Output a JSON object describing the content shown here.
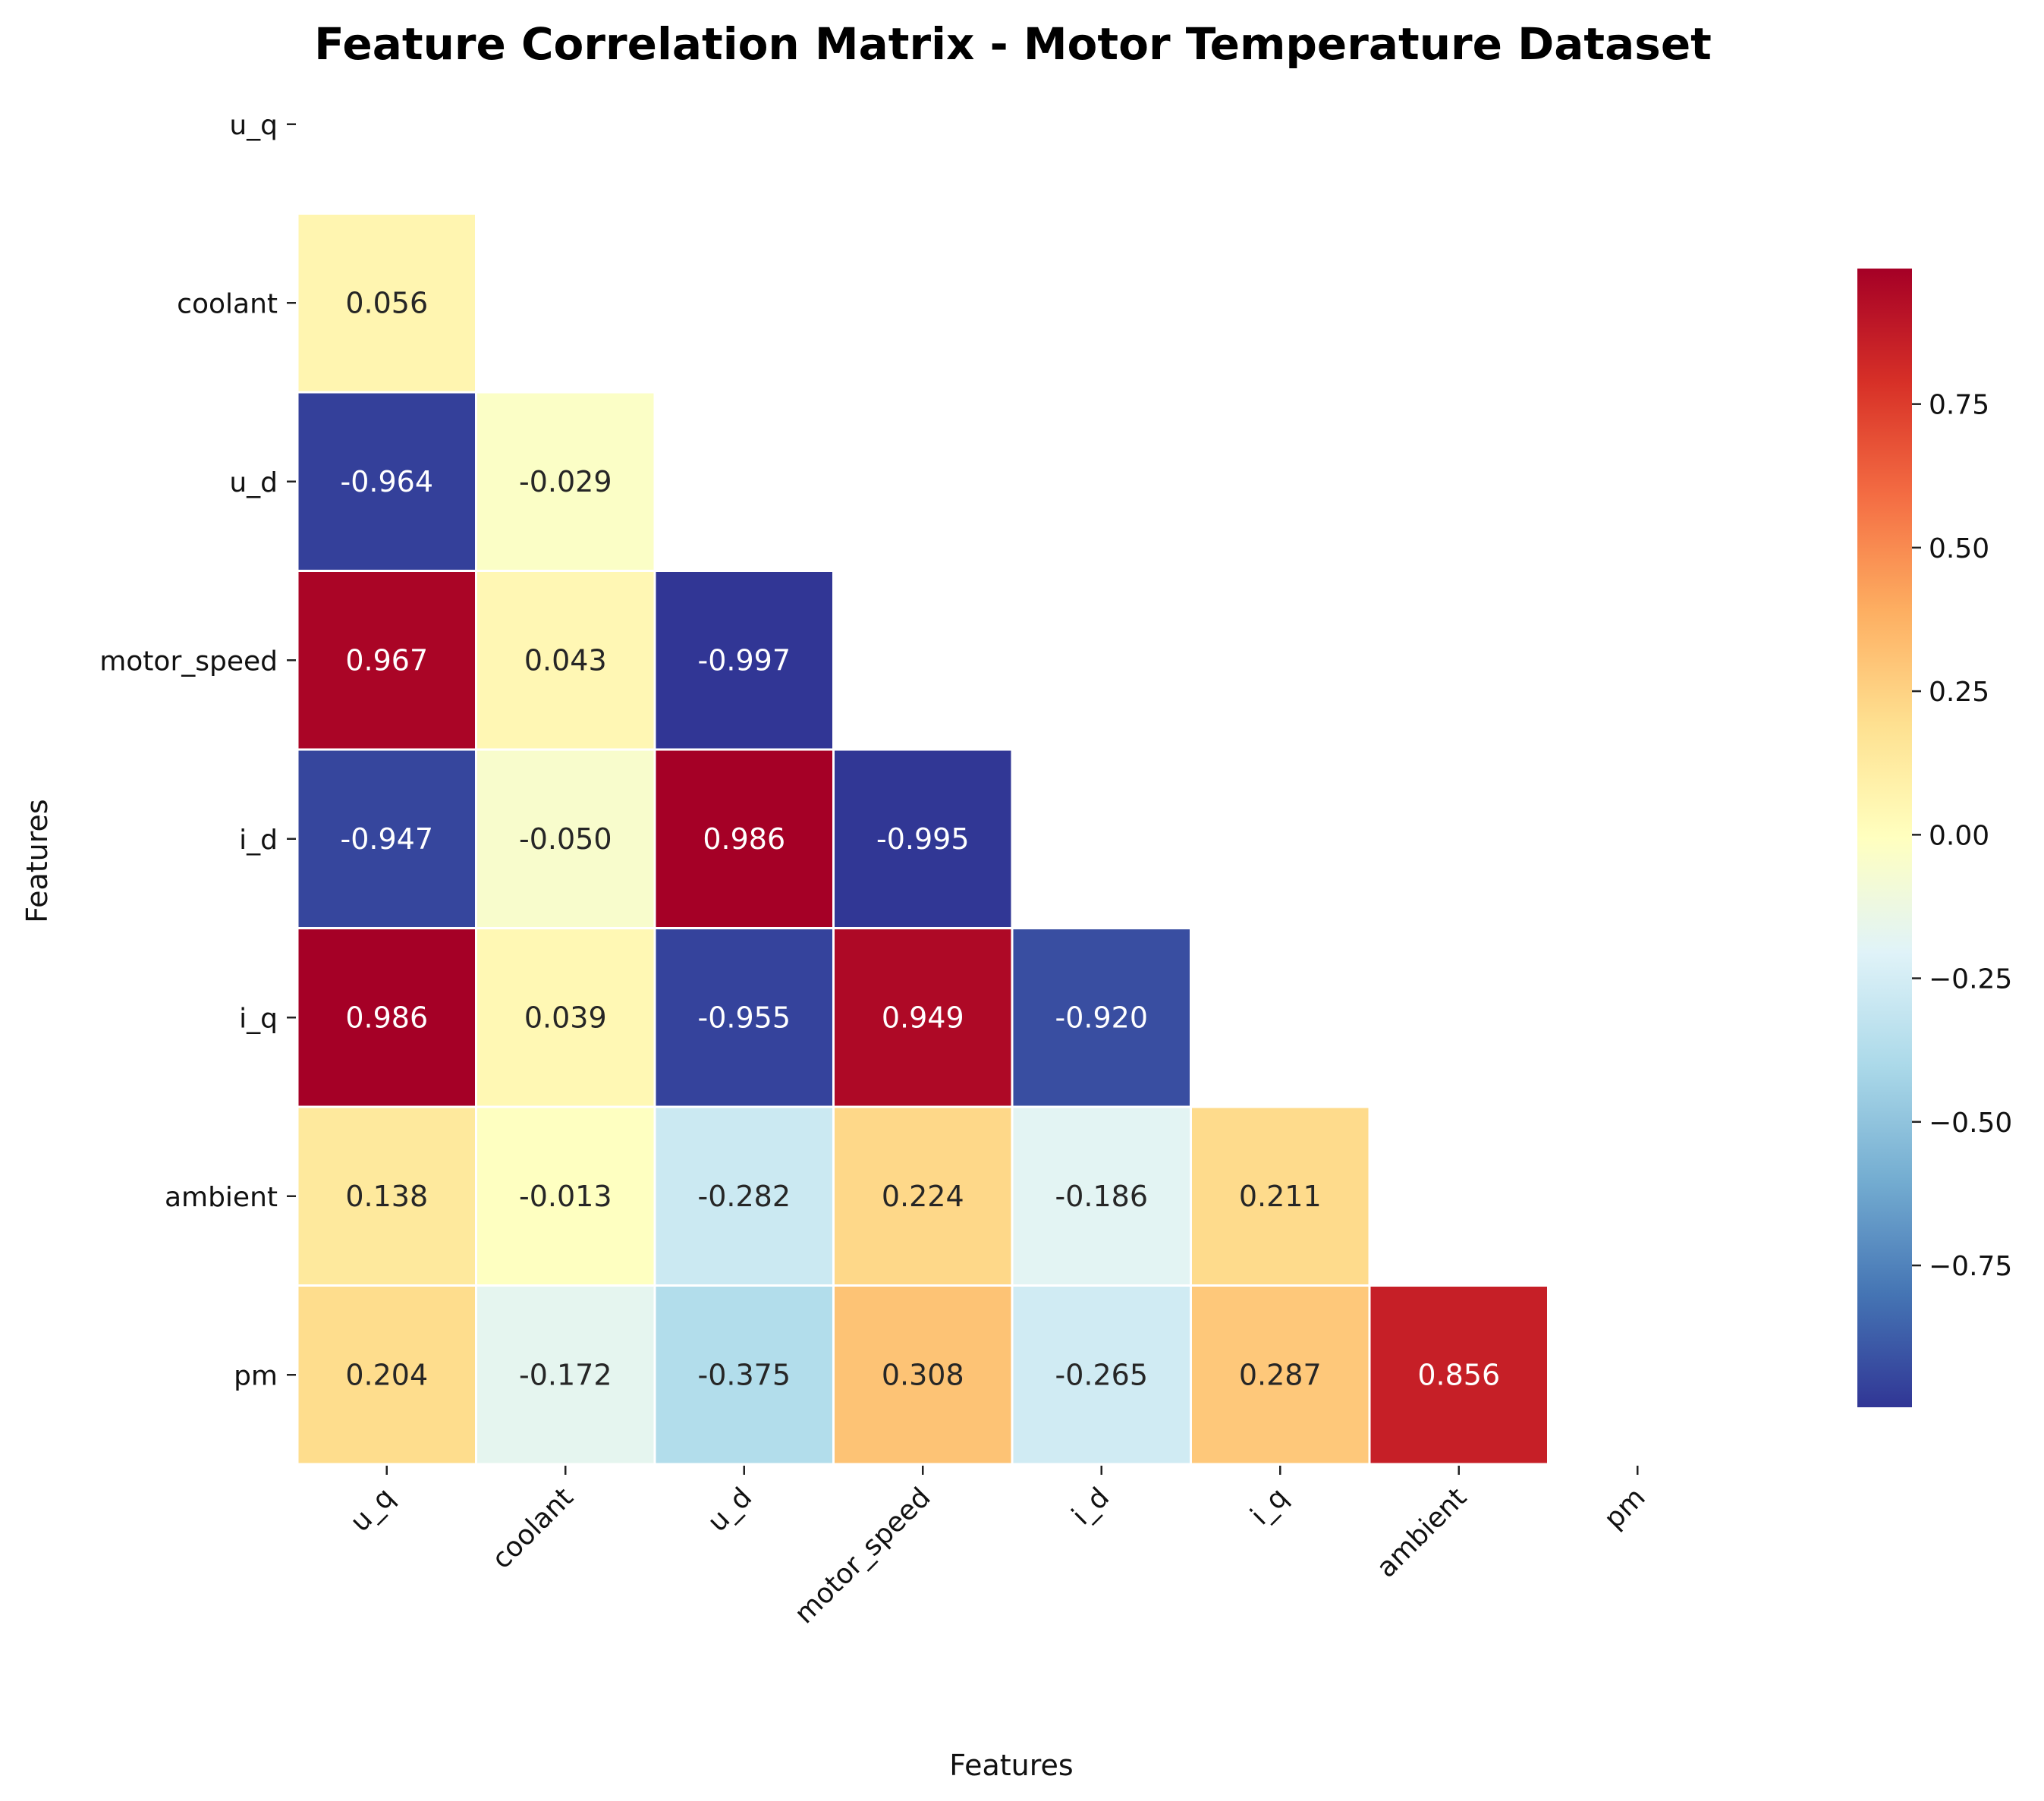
{
  "chart_data": {
    "type": "heatmap",
    "title": "Feature Correlation Matrix - Motor Temperature Dataset",
    "xlabel": "Features",
    "ylabel": "Features",
    "features": [
      "u_q",
      "coolant",
      "u_d",
      "motor_speed",
      "i_d",
      "i_q",
      "ambient",
      "pm"
    ],
    "mask": "upper-triangle-including-diagonal",
    "values": [
      [
        null,
        null,
        null,
        null,
        null,
        null,
        null,
        null
      ],
      [
        0.056,
        null,
        null,
        null,
        null,
        null,
        null,
        null
      ],
      [
        -0.964,
        -0.029,
        null,
        null,
        null,
        null,
        null,
        null
      ],
      [
        0.967,
        0.043,
        -0.997,
        null,
        null,
        null,
        null,
        null
      ],
      [
        -0.947,
        -0.05,
        0.986,
        -0.995,
        null,
        null,
        null,
        null
      ],
      [
        0.986,
        0.039,
        -0.955,
        0.949,
        -0.92,
        null,
        null,
        null
      ],
      [
        0.138,
        -0.013,
        -0.282,
        0.224,
        -0.186,
        0.211,
        null,
        null
      ],
      [
        0.204,
        -0.172,
        -0.375,
        0.308,
        -0.265,
        0.287,
        0.856,
        null
      ]
    ],
    "colormap": "RdYlBu_r",
    "color_range": [
      -0.997,
      0.986
    ],
    "colorbar_ticks": [
      0.75,
      0.5,
      0.25,
      0.0,
      -0.25,
      -0.5,
      -0.75
    ],
    "colorbar_tick_labels": [
      "0.75",
      "0.50",
      "0.25",
      "0.00",
      "−0.25",
      "−0.50",
      "−0.75"
    ]
  }
}
